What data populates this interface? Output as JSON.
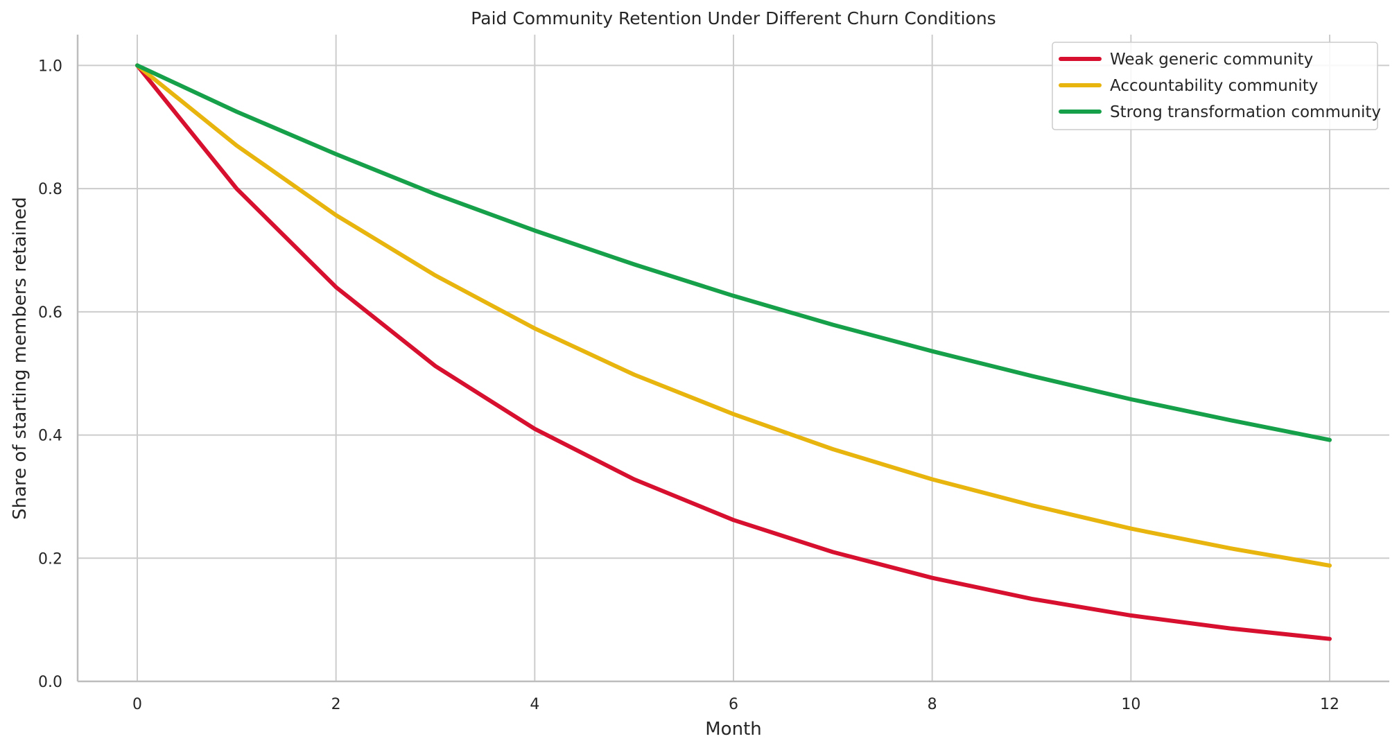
{
  "chart_data": {
    "type": "line",
    "title": "Paid Community Retention Under Different Churn Conditions",
    "xlabel": "Month",
    "ylabel": "Share of starting members retained",
    "xlim": [
      -0.6,
      12.6
    ],
    "ylim": [
      0.0,
      1.05
    ],
    "xticks": [
      0,
      2,
      4,
      6,
      8,
      10,
      12
    ],
    "yticks": [
      0.0,
      0.2,
      0.4,
      0.6,
      0.8,
      1.0
    ],
    "xtick_labels": [
      "0",
      "2",
      "4",
      "6",
      "8",
      "10",
      "12"
    ],
    "ytick_labels": [
      "0.0",
      "0.2",
      "0.4",
      "0.6",
      "0.8",
      "1.0"
    ],
    "grid": true,
    "legend_position": "top-right",
    "x": [
      0,
      1,
      2,
      3,
      4,
      5,
      6,
      7,
      8,
      9,
      10,
      11,
      12
    ],
    "series": [
      {
        "name": "Weak generic community",
        "color": "#d7102f",
        "values": [
          1.0,
          0.8,
          0.64,
          0.512,
          0.41,
          0.328,
          0.262,
          0.21,
          0.168,
          0.134,
          0.107,
          0.086,
          0.069
        ]
      },
      {
        "name": "Accountability community",
        "color": "#e8b40e",
        "values": [
          1.0,
          0.87,
          0.757,
          0.659,
          0.573,
          0.498,
          0.434,
          0.377,
          0.328,
          0.286,
          0.248,
          0.216,
          0.188
        ]
      },
      {
        "name": "Strong transformation community",
        "color": "#17a04a",
        "values": [
          1.0,
          0.925,
          0.856,
          0.791,
          0.732,
          0.677,
          0.626,
          0.579,
          0.536,
          0.496,
          0.458,
          0.424,
          0.392
        ]
      }
    ]
  }
}
